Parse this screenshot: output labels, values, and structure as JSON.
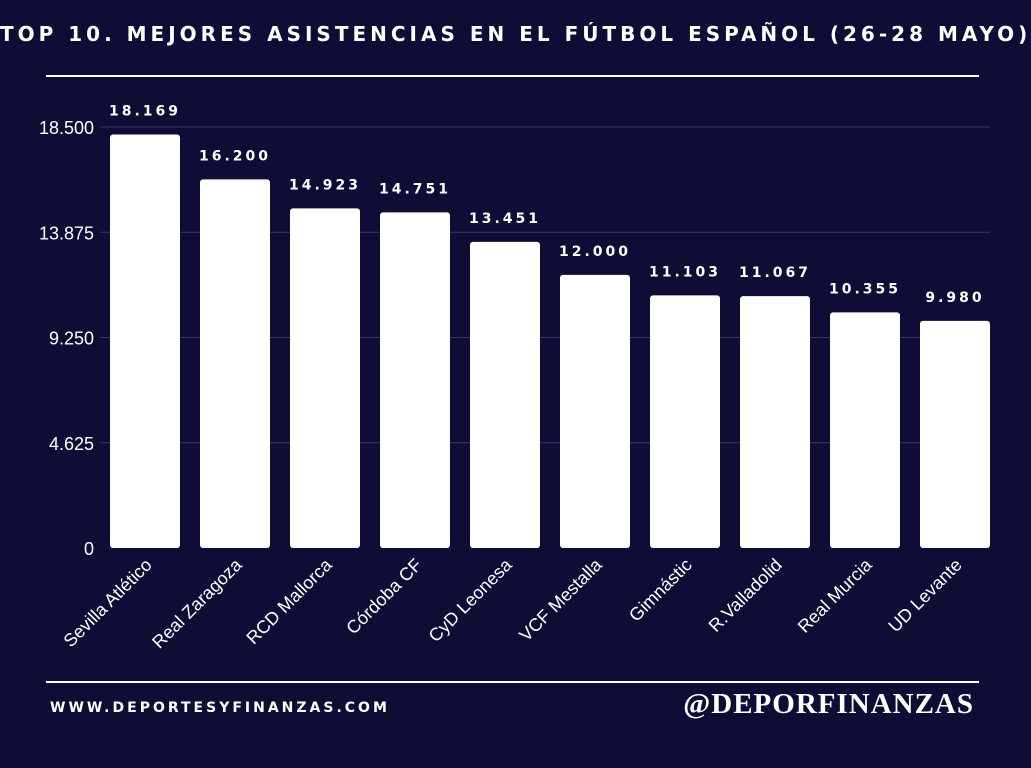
{
  "title": "TOP 10. MEJORES ASISTENCIAS EN EL FÚTBOL ESPAÑOL (26-28 MAYO)",
  "footer": {
    "website": "WWW.DEPORTESYFINANZAS.COM",
    "handle": "@DEPORFINANZAS"
  },
  "colors": {
    "background": "#0f0c35",
    "bars": "#ffffff",
    "text": "#ffffff",
    "grid": "#3b3866"
  },
  "chart_data": {
    "type": "bar",
    "title": "TOP 10. MEJORES ASISTENCIAS EN EL FÚTBOL ESPAÑOL (26-28 MAYO)",
    "xlabel": "",
    "ylabel": "",
    "categories": [
      "Sevilla Atlético",
      "Real Zaragoza",
      "RCD Mallorca",
      "Córdoba CF",
      "CyD Leonesa",
      "VCF Mestalla",
      "Gimnástic",
      "R.Valladolid",
      "Real Murcia",
      "UD Levante"
    ],
    "values": [
      18169,
      16200,
      14923,
      14751,
      13451,
      12000,
      11103,
      11067,
      10355,
      9980
    ],
    "value_labels": [
      "18.169",
      "16.200",
      "14.923",
      "14.751",
      "13.451",
      "12.000",
      "11.103",
      "11.067",
      "10.355",
      "9.980"
    ],
    "yticks": [
      0,
      4625,
      9250,
      13875,
      18500
    ],
    "ytick_labels": [
      "0",
      "4.625",
      "9.250",
      "13.875",
      "18.500"
    ],
    "ylim": [
      0,
      18500
    ],
    "grid": true,
    "legend": "none"
  }
}
